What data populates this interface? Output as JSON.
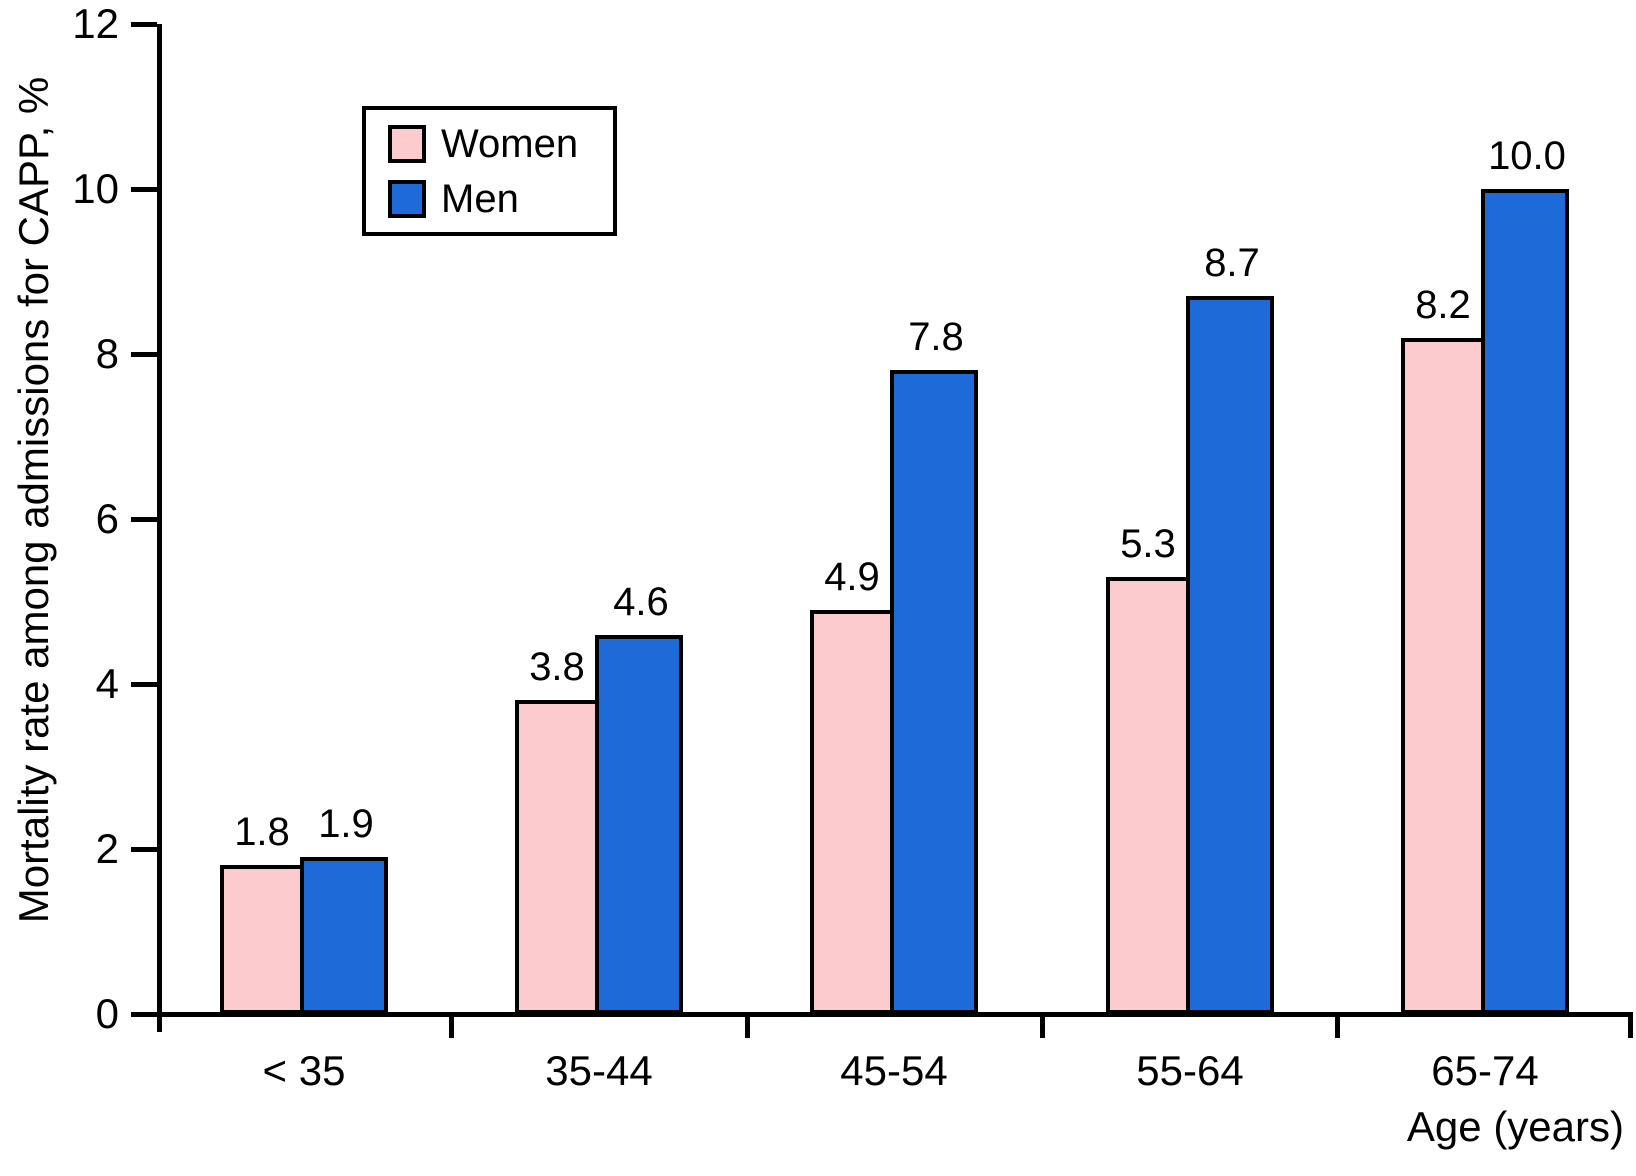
{
  "chart_data": {
    "type": "bar",
    "title": "",
    "xlabel": "Age (years)",
    "ylabel": "Mortality rate among admissions for CAPP, %",
    "categories": [
      "< 35",
      "35-44",
      "45-54",
      "55-64",
      "65-74"
    ],
    "series": [
      {
        "name": "Women",
        "color": "#FBCBCE",
        "values": [
          1.8,
          3.8,
          4.9,
          5.3,
          8.2
        ],
        "labels": [
          "1.8",
          "3.8",
          "4.9",
          "5.3",
          "8.2"
        ]
      },
      {
        "name": "Men",
        "color": "#1E6AD9",
        "values": [
          1.9,
          4.6,
          7.8,
          8.7,
          10.0
        ],
        "labels": [
          "1.9",
          "4.6",
          "7.8",
          "8.7",
          "10.0"
        ]
      }
    ],
    "ylim": [
      0,
      12
    ],
    "yticks": [
      0,
      2,
      4,
      6,
      8,
      10,
      12
    ],
    "grid": false,
    "legend_position": "top-left",
    "bar_outline_color": "#000000",
    "axis_color": "#000000"
  }
}
